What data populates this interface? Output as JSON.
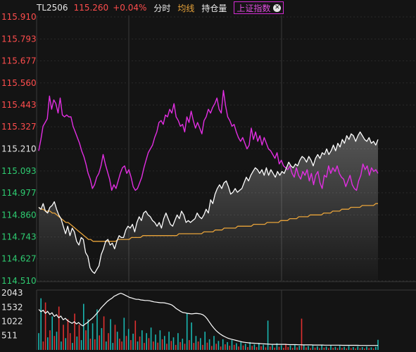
{
  "header": {
    "symbol": "TL2506",
    "price": "115.260",
    "change_pct": "+0.04%",
    "tab_timeshare": "分时",
    "tab_avg": "均线",
    "tab_oi": "持仓量",
    "index_tag": "上证指数",
    "close_icon": "close-icon"
  },
  "colors": {
    "up": "#ff4d4d",
    "down": "#2ecc71",
    "price_line": "#ffffff",
    "avg_line": "#e8a33a",
    "index_line": "#e22ee2",
    "vol_up": "#e03030",
    "vol_down": "#19b6b0"
  },
  "chart_data": [
    {
      "type": "line",
      "title": "",
      "y_ticks": [
        "115.910",
        "115.793",
        "115.677",
        "115.560",
        "115.443",
        "115.327",
        "115.210",
        "115.093",
        "114.977",
        "114.860",
        "114.743",
        "114.627",
        "114.510"
      ],
      "ylim": [
        114.51,
        115.91
      ],
      "prev_close": 115.21,
      "series": [
        {
          "key": "price",
          "values": [
            114.9,
            114.89,
            114.92,
            114.88,
            114.87,
            114.9,
            114.91,
            114.93,
            114.89,
            114.86,
            114.84,
            114.8,
            114.76,
            114.8,
            114.75,
            114.79,
            114.77,
            114.72,
            114.7,
            114.74,
            114.73,
            114.66,
            114.64,
            114.58,
            114.56,
            114.55,
            114.57,
            114.59,
            114.65,
            114.68,
            114.72,
            114.73,
            114.7,
            114.71,
            114.68,
            114.72,
            114.75,
            114.74,
            114.74,
            114.78,
            114.8,
            114.79,
            114.81,
            114.77,
            114.82,
            114.85,
            114.83,
            114.87,
            114.88,
            114.86,
            114.85,
            114.83,
            114.82,
            114.8,
            114.82,
            114.79,
            114.84,
            114.87,
            114.84,
            114.81,
            114.8,
            114.83,
            114.86,
            114.84,
            114.88,
            114.86,
            114.82,
            114.83,
            114.82,
            114.83,
            114.84,
            114.87,
            114.85,
            114.84,
            114.86,
            114.89,
            114.87,
            114.94,
            114.92,
            114.97,
            115.0,
            115.02,
            115.0,
            115.03,
            115.04,
            115.01,
            114.97,
            114.98,
            115.0,
            114.98,
            114.99,
            115.0,
            115.03,
            115.06,
            115.04,
            115.07,
            115.09,
            115.11,
            115.1,
            115.08,
            115.1,
            115.07,
            115.11,
            115.07,
            115.1,
            115.08,
            115.06,
            115.09,
            115.07,
            115.09,
            115.08,
            115.11,
            115.14,
            115.12,
            115.11,
            115.13,
            115.12,
            115.15,
            115.17,
            115.16,
            115.14,
            115.17,
            115.15,
            115.12,
            115.16,
            115.18,
            115.16,
            115.19,
            115.18,
            115.21,
            115.18,
            115.2,
            115.23,
            115.2,
            115.24,
            115.22,
            115.26,
            115.24,
            115.28,
            115.26,
            115.29,
            115.28,
            115.25,
            115.28,
            115.3,
            115.28,
            115.26,
            115.25,
            115.27,
            115.24,
            115.25,
            115.23,
            115.26
          ],
          "name": ""
        },
        {
          "key": "avg",
          "values": [
            114.9,
            114.89,
            114.89,
            114.88,
            114.88,
            114.88,
            114.87,
            114.87,
            114.86,
            114.85,
            114.84,
            114.83,
            114.82,
            114.82,
            114.81,
            114.8,
            114.79,
            114.78,
            114.77,
            114.76,
            114.75,
            114.74,
            114.73,
            114.73,
            114.72,
            114.72,
            114.72,
            114.72,
            114.72,
            114.72,
            114.72,
            114.72,
            114.72,
            114.72,
            114.72,
            114.73,
            114.73,
            114.73,
            114.73,
            114.73,
            114.73,
            114.74,
            114.74,
            114.74,
            114.74,
            114.74,
            114.75,
            114.75,
            114.75,
            114.75,
            114.75,
            114.75,
            114.75,
            114.75,
            114.75,
            114.75,
            114.75,
            114.75,
            114.75,
            114.75,
            114.75,
            114.75,
            114.76,
            114.76,
            114.76,
            114.76,
            114.76,
            114.76,
            114.76,
            114.76,
            114.76,
            114.76,
            114.76,
            114.77,
            114.77,
            114.77,
            114.77,
            114.77,
            114.78,
            114.78,
            114.78,
            114.78,
            114.79,
            114.79,
            114.79,
            114.79,
            114.79,
            114.79,
            114.8,
            114.8,
            114.8,
            114.8,
            114.8,
            114.8,
            114.8,
            114.81,
            114.81,
            114.81,
            114.81,
            114.81,
            114.81,
            114.82,
            114.82,
            114.82,
            114.82,
            114.82,
            114.82,
            114.83,
            114.83,
            114.83,
            114.83,
            114.84,
            114.84,
            114.84,
            114.84,
            114.85,
            114.85,
            114.85,
            114.85,
            114.85,
            114.86,
            114.86,
            114.86,
            114.86,
            114.86,
            114.86,
            114.87,
            114.87,
            114.87,
            114.87,
            114.88,
            114.88,
            114.88,
            114.88,
            114.89,
            114.89,
            114.89,
            114.89,
            114.9,
            114.9,
            114.9,
            114.9,
            114.9,
            114.91,
            114.91,
            114.91,
            114.91,
            114.91,
            114.91,
            114.92,
            114.92
          ],
          "name": ""
        },
        {
          "key": "index",
          "values": [
            115.2,
            115.26,
            115.33,
            115.35,
            115.37,
            115.49,
            115.42,
            115.47,
            115.45,
            115.4,
            115.48,
            115.39,
            115.38,
            115.39,
            115.38,
            115.38,
            115.33,
            115.3,
            115.27,
            115.24,
            115.2,
            115.17,
            115.13,
            115.08,
            115.05,
            115.0,
            115.02,
            115.06,
            115.08,
            115.12,
            115.18,
            115.13,
            115.09,
            115.05,
            114.99,
            115.02,
            115.0,
            115.04,
            115.08,
            115.11,
            115.12,
            115.08,
            115.1,
            115.06,
            115.01,
            114.99,
            115.0,
            115.03,
            115.06,
            115.11,
            115.15,
            115.19,
            115.21,
            115.23,
            115.27,
            115.3,
            115.35,
            115.36,
            115.34,
            115.39,
            115.38,
            115.42,
            115.4,
            115.45,
            115.38,
            115.36,
            115.33,
            115.34,
            115.3,
            115.38,
            115.35,
            115.41,
            115.36,
            115.32,
            115.35,
            115.32,
            115.29,
            115.36,
            115.38,
            115.42,
            115.4,
            115.43,
            115.45,
            115.48,
            115.42,
            115.4,
            115.52,
            115.44,
            115.38,
            115.36,
            115.33,
            115.34,
            115.3,
            115.27,
            115.25,
            115.27,
            115.24,
            115.21,
            115.23,
            115.32,
            115.26,
            115.3,
            115.25,
            115.28,
            115.23,
            115.27,
            115.24,
            115.21,
            115.2,
            115.18,
            115.16,
            115.19,
            115.13,
            115.15,
            115.12,
            115.11,
            115.1,
            115.12,
            115.08,
            115.06,
            115.11,
            115.07,
            115.05,
            115.09,
            115.07,
            115.1,
            115.04,
            115.08,
            115.02,
            115.07,
            115.09,
            115.03,
            115.0,
            115.07,
            115.06,
            115.12,
            115.08,
            115.11,
            115.09,
            115.12,
            115.08,
            115.06,
            115.05,
            115.01,
            115.04,
            115.07,
            115.02,
            115.0,
            114.99,
            115.04,
            115.07,
            115.13,
            115.1,
            115.12,
            115.07,
            115.11,
            115.09,
            115.1,
            115.08
          ],
          "name": ""
        }
      ]
    },
    {
      "type": "bar",
      "title": "",
      "y_ticks": [
        "2043",
        "1532",
        "1022",
        "511"
      ],
      "ylim": [
        0,
        2043
      ],
      "volume_line": [
        1450,
        1370,
        1420,
        1310,
        1380,
        1270,
        1330,
        1200,
        1260,
        1150,
        1210,
        1080,
        1130,
        1050,
        1000,
        950,
        1010,
        930,
        980,
        900,
        860,
        930,
        980,
        1060,
        1120,
        1200,
        1290,
        1380,
        1490,
        1580,
        1660,
        1740,
        1800,
        1850,
        1920,
        1960,
        2000,
        2030,
        2000,
        1960,
        1920,
        1880,
        1860,
        1830,
        1810,
        1810,
        1790,
        1780,
        1770,
        1770,
        1760,
        1740,
        1720,
        1710,
        1700,
        1690,
        1690,
        1680,
        1660,
        1640,
        1610,
        1550,
        1480,
        1430,
        1380,
        1340,
        1330,
        1310,
        1300,
        1290,
        1300,
        1310,
        1300,
        1290,
        1260,
        1200,
        1110,
        990,
        880,
        780,
        690,
        620,
        560,
        510,
        470,
        430,
        400,
        380,
        360,
        340,
        320,
        300,
        280,
        270,
        260,
        250,
        245,
        240,
        235,
        230,
        225,
        220,
        215,
        210,
        205,
        200,
        200,
        200,
        200,
        200,
        200,
        200,
        195,
        190,
        190,
        190,
        190,
        185,
        185,
        180,
        180,
        180,
        180,
        180,
        175,
        175,
        175,
        175,
        175,
        170,
        170,
        170,
        170,
        170,
        170,
        170,
        170,
        165,
        165,
        165,
        165,
        165,
        165,
        165,
        165,
        160,
        160,
        160,
        160,
        160,
        160,
        160,
        160,
        160
      ],
      "volume_bars": [
        600,
        1850,
        300,
        1700,
        450,
        700,
        1200,
        500,
        650,
        1550,
        300,
        900,
        420,
        1100,
        600,
        250,
        1300,
        480,
        900,
        350,
        1650,
        700,
        1100,
        400,
        950,
        380,
        1450,
        520,
        780,
        1200,
        300,
        600,
        1100,
        250,
        900,
        650,
        400,
        300,
        1150,
        500,
        750,
        350,
        580,
        1050,
        300,
        480,
        700,
        250,
        600,
        420,
        800,
        300,
        550,
        260,
        700,
        380,
        500,
        220,
        650,
        320,
        450,
        180,
        600,
        280,
        400,
        220,
        1300,
        350,
        980,
        250,
        500,
        300,
        420,
        180,
        650,
        260,
        380,
        140,
        500,
        220,
        320,
        120,
        380,
        200,
        280,
        150,
        350,
        180,
        240,
        120,
        300,
        160,
        220,
        100,
        280,
        140,
        200,
        100,
        250,
        130,
        190,
        90,
        1050,
        120,
        180,
        80,
        240,
        110,
        170,
        70,
        220,
        100,
        160,
        70,
        200,
        90,
        150,
        1120,
        190,
        90,
        140,
        60,
        180,
        80,
        130,
        60,
        170,
        80,
        120,
        60,
        160,
        70,
        110,
        60,
        150,
        70,
        110,
        50,
        140,
        60,
        100,
        50,
        130,
        60,
        100,
        50,
        120,
        60,
        90,
        50,
        110,
        360
      ],
      "volume_colors": [
        "d",
        "d",
        "u",
        "u",
        "d",
        "u",
        "d",
        "u",
        "d",
        "u",
        "d",
        "u",
        "d",
        "u",
        "u",
        "d",
        "u",
        "d",
        "u",
        "d",
        "d",
        "u",
        "d",
        "u",
        "d",
        "u",
        "d",
        "u",
        "d",
        "u",
        "d",
        "u",
        "d",
        "d",
        "u",
        "d",
        "u",
        "u",
        "d",
        "u",
        "d",
        "u",
        "d",
        "u",
        "d",
        "u",
        "d",
        "u",
        "d",
        "u",
        "d",
        "u",
        "d",
        "u",
        "d",
        "u",
        "d",
        "u",
        "d",
        "u",
        "d",
        "u",
        "d",
        "u",
        "d",
        "u",
        "d",
        "u",
        "d",
        "u",
        "d",
        "u",
        "d",
        "u",
        "d",
        "u",
        "d",
        "u",
        "d",
        "u",
        "d",
        "u",
        "d",
        "u",
        "d",
        "u",
        "d",
        "u",
        "d",
        "u",
        "d",
        "u",
        "d",
        "u",
        "d",
        "u",
        "d",
        "u",
        "d",
        "u",
        "d",
        "u",
        "d",
        "u",
        "d",
        "u",
        "d",
        "u",
        "d",
        "u",
        "u",
        "u",
        "d",
        "u",
        "d",
        "u",
        "d",
        "u",
        "d",
        "u",
        "d",
        "u",
        "d",
        "u",
        "d",
        "u",
        "d",
        "u",
        "d",
        "u",
        "d",
        "u",
        "d",
        "u",
        "d",
        "u",
        "d",
        "u",
        "d",
        "u",
        "d",
        "u",
        "d",
        "u",
        "d",
        "u",
        "d",
        "u",
        "d",
        "u",
        "d"
      ]
    }
  ]
}
